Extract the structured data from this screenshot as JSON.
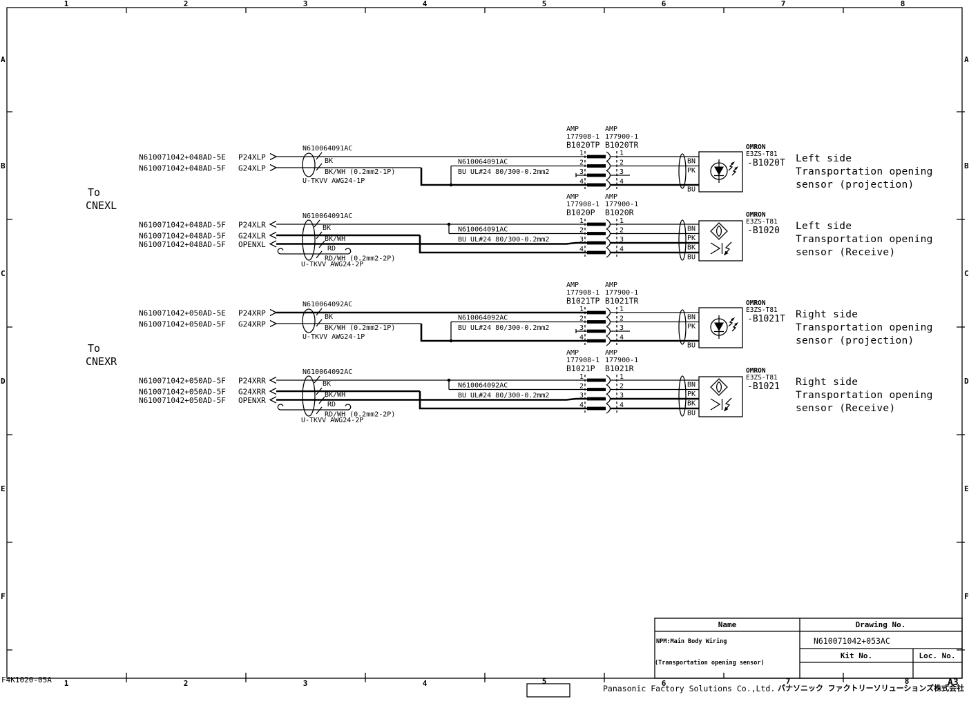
{
  "frame": {
    "columns": [
      "1",
      "2",
      "3",
      "4",
      "5",
      "6",
      "7",
      "8"
    ],
    "rows": [
      "A",
      "B",
      "C",
      "D",
      "E",
      "F"
    ],
    "doc_code": "F4K1020-05A",
    "sheet_size": "A3"
  },
  "footer": {
    "company_en": "Panasonic Factory Solutions Co.,Ltd.",
    "company_jp": "パナソニック ファクトリーソリューションズ株式会社"
  },
  "title_block": {
    "name_header": "Name",
    "drawing_header": "Drawing No.",
    "kit_header": "Kit No.",
    "loc_header": "Loc. No.",
    "name_line1": "NPM:Main Body Wiring",
    "name_line2": "(Transportation opening sensor)",
    "drawing_no": "N610071042+053AC"
  },
  "groups": [
    {
      "label": "To",
      "connector": "CNEXL"
    },
    {
      "label": "To",
      "connector": "CNEXR"
    }
  ],
  "circuits": [
    {
      "cable_label": "N610064091AC",
      "cable_spec": "U-TKVV AWG24-1P",
      "rows": [
        {
          "part": "N610071042+048AD-5E",
          "signal": "P24XLP"
        },
        {
          "part": "N610071042+048AD-5F",
          "signal": "G24XLP"
        }
      ],
      "wire_labels": [
        "BK",
        "BK/WH (0.2mm2-1P)"
      ],
      "jumper_label": "N610064091AC",
      "jumper_spec": "BU  UL#24 80/300-0.2mm2",
      "conn_left": {
        "make": "AMP",
        "part": "177908-1",
        "ref": "B1020TP"
      },
      "conn_right": {
        "make": "AMP",
        "part": "177900-1",
        "ref": "B1020TR"
      },
      "pins": [
        "1",
        "2",
        "3",
        "4"
      ],
      "sensor_wires": [
        "BN",
        "PK",
        "BU"
      ],
      "sensor": {
        "make": "OMRON",
        "model": "E3ZS-T81",
        "ref": "-B1020T"
      },
      "desc": [
        "Left side",
        "Transportation opening",
        "sensor (projection)"
      ]
    },
    {
      "cable_label": "N610064091AC",
      "cable_spec": "U-TKVV AWG24-2P",
      "rows": [
        {
          "part": "N610071042+048AD-5F",
          "signal": "P24XLR"
        },
        {
          "part": "N610071042+048AD-5F",
          "signal": "G24XLR"
        },
        {
          "part": "N610071042+048AD-5F",
          "signal": "OPENXL"
        }
      ],
      "wire_labels": [
        "BK",
        "BK/WH",
        "RD",
        "RD/WH (0.2mm2-2P)"
      ],
      "jumper_label": "N610064091AC",
      "jumper_spec": "BU  UL#24 80/300-0.2mm2",
      "conn_left": {
        "make": "AMP",
        "part": "177908-1",
        "ref": "B1020P"
      },
      "conn_right": {
        "make": "AMP",
        "part": "177900-1",
        "ref": "B1020R"
      },
      "pins": [
        "1",
        "2",
        "3",
        "4"
      ],
      "sensor_wires": [
        "BN",
        "PK",
        "BK",
        "BU"
      ],
      "sensor": {
        "make": "OMRON",
        "model": "E3ZS-T81",
        "ref": "-B1020"
      },
      "desc": [
        "Left side",
        "Transportation opening",
        "sensor (Receive)"
      ]
    },
    {
      "cable_label": "N610064092AC",
      "cable_spec": "U-TKVV AWG24-1P",
      "rows": [
        {
          "part": "N610071042+050AD-5E",
          "signal": "P24XRP"
        },
        {
          "part": "N610071042+050AD-5F",
          "signal": "G24XRP"
        }
      ],
      "wire_labels": [
        "BK",
        "BK/WH (0.2mm2-1P)"
      ],
      "jumper_label": "N610064092AC",
      "jumper_spec": "BU  UL#24 80/300-0.2mm2",
      "conn_left": {
        "make": "AMP",
        "part": "177908-1",
        "ref": "B1021TP"
      },
      "conn_right": {
        "make": "AMP",
        "part": "177900-1",
        "ref": "B1021TR"
      },
      "pins": [
        "1",
        "2",
        "3",
        "4"
      ],
      "sensor_wires": [
        "BN",
        "PK",
        "BU"
      ],
      "sensor": {
        "make": "OMRON",
        "model": "E3ZS-T81",
        "ref": "-B1021T"
      },
      "desc": [
        "Right side",
        "Transportation opening",
        "sensor (projection)"
      ]
    },
    {
      "cable_label": "N610064092AC",
      "cable_spec": "U-TKVV AWG24-2P",
      "rows": [
        {
          "part": "N610071042+050AD-5F",
          "signal": "P24XRR"
        },
        {
          "part": "N610071042+050AD-5F",
          "signal": "G24XRR"
        },
        {
          "part": "N610071042+050AD-5F",
          "signal": "OPENXR"
        }
      ],
      "wire_labels": [
        "BK",
        "BK/WH",
        "RD",
        "RD/WH (0.2mm2-2P)"
      ],
      "jumper_label": "N610064092AC",
      "jumper_spec": "BU  UL#24 80/300-0.2mm2",
      "conn_left": {
        "make": "AMP",
        "part": "177908-1",
        "ref": "B1021P"
      },
      "conn_right": {
        "make": "AMP",
        "part": "177900-1",
        "ref": "B1021R"
      },
      "pins": [
        "1",
        "2",
        "3",
        "4"
      ],
      "sensor_wires": [
        "BN",
        "PK",
        "BK",
        "BU"
      ],
      "sensor": {
        "make": "OMRON",
        "model": "E3ZS-T81",
        "ref": "-B1021"
      },
      "desc": [
        "Right side",
        "Transportation opening",
        "sensor (Receive)"
      ]
    }
  ]
}
